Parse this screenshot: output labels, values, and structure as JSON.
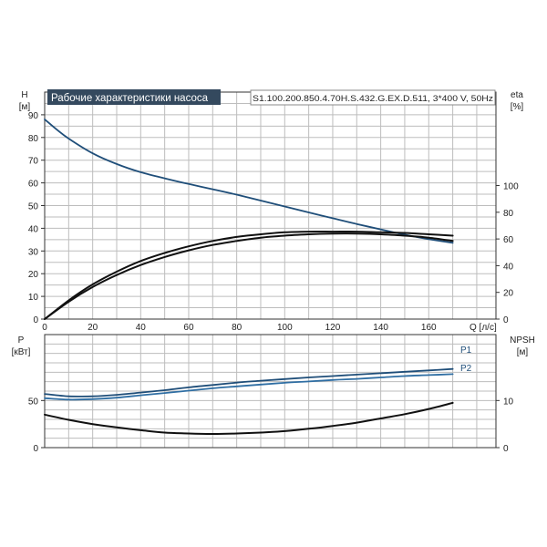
{
  "colors": {
    "accent": "#1f4e79",
    "title_bg": "#34495e",
    "title_text": "#ffffff",
    "curve_black": "#111111",
    "grid": "#bdbdbd"
  },
  "header": {
    "title": "Рабочие характеристики насоса",
    "model": "S1.100.200.850.4.70H.S.432.G.EX.D.511, 3*400 V, 50Hz"
  },
  "chart_data": [
    {
      "type": "line",
      "xlabel": "Q [л/с]",
      "x_ticks": [
        0,
        20,
        40,
        60,
        80,
        100,
        120,
        140,
        160
      ],
      "xlim": [
        0,
        188
      ],
      "left_axis": {
        "label_top": "H",
        "label_unit": "[м]",
        "ylim": [
          0,
          100
        ],
        "ticks": [
          0,
          10,
          20,
          30,
          40,
          50,
          60,
          70,
          80,
          90
        ]
      },
      "right_axis": {
        "label_top": "eta",
        "label_unit": "[%]",
        "ylim": [
          0,
          170
        ],
        "ticks": [
          0,
          20,
          40,
          60,
          80,
          100
        ]
      },
      "grid": true,
      "series": [
        {
          "axis": "left",
          "color": "#1f4e79",
          "x": [
            0,
            5,
            10,
            20,
            30,
            40,
            50,
            60,
            70,
            80,
            90,
            100,
            110,
            120,
            130,
            140,
            150,
            160,
            170
          ],
          "values": [
            88,
            83.5,
            79.5,
            73,
            68.3,
            64.7,
            62,
            59.5,
            57.2,
            54.8,
            52.2,
            49.6,
            47,
            44.4,
            41.9,
            39.5,
            37.2,
            35.2,
            33.6
          ]
        },
        {
          "axis": "right",
          "color": "#111111",
          "x": [
            0,
            10,
            20,
            30,
            40,
            50,
            60,
            70,
            80,
            90,
            100,
            110,
            120,
            130,
            140,
            150,
            160,
            170
          ],
          "values": [
            0,
            13,
            24,
            33,
            40.5,
            46.5,
            51.5,
            55.5,
            58.5,
            61,
            62.5,
            63.5,
            64,
            64,
            63.5,
            62.5,
            61,
            58.5
          ]
        },
        {
          "axis": "right",
          "color": "#111111",
          "x": [
            0,
            10,
            20,
            30,
            40,
            50,
            60,
            70,
            80,
            90,
            100,
            110,
            120,
            130,
            140,
            150,
            160,
            170
          ],
          "values": [
            0,
            14,
            26,
            35.5,
            43.5,
            49.5,
            54.5,
            58.5,
            61.5,
            63.5,
            65,
            65.5,
            65.5,
            65.5,
            65,
            64.5,
            63.5,
            62.5
          ]
        }
      ]
    },
    {
      "type": "line",
      "xlim": [
        0,
        188
      ],
      "left_axis": {
        "label_top": "P",
        "label_unit": "[кВт]",
        "ylim": [
          0,
          120
        ],
        "ticks": [
          0,
          50
        ]
      },
      "right_axis": {
        "label_top": "NPSH",
        "label_unit": "[м]",
        "ylim": [
          0,
          24
        ],
        "ticks": [
          0,
          10
        ]
      },
      "grid": true,
      "series": [
        {
          "name": "P1",
          "axis": "left",
          "color": "#1f4e79",
          "x": [
            0,
            10,
            20,
            30,
            40,
            50,
            60,
            70,
            80,
            90,
            100,
            110,
            120,
            130,
            140,
            150,
            160,
            170
          ],
          "values": [
            57,
            54.5,
            54.5,
            56,
            58.5,
            61,
            64,
            66.5,
            69,
            71,
            72.8,
            74.5,
            76,
            77.5,
            79,
            80.5,
            82,
            83.5
          ]
        },
        {
          "name": "P2",
          "axis": "left",
          "color": "#2f6ea3",
          "x": [
            0,
            10,
            20,
            30,
            40,
            50,
            60,
            70,
            80,
            90,
            100,
            110,
            120,
            130,
            140,
            150,
            160,
            170
          ],
          "values": [
            52.5,
            51,
            51.5,
            53,
            55.5,
            58,
            60.5,
            63,
            65,
            67,
            68.8,
            70.3,
            71.8,
            73,
            74.5,
            76,
            77,
            78
          ]
        },
        {
          "name": "NPSH",
          "axis": "right",
          "color": "#111111",
          "x": [
            0,
            10,
            20,
            30,
            40,
            50,
            60,
            70,
            80,
            90,
            100,
            110,
            120,
            130,
            140,
            150,
            160,
            170
          ],
          "values": [
            7,
            5.9,
            5,
            4.3,
            3.7,
            3.2,
            3,
            2.9,
            3,
            3.2,
            3.5,
            4,
            4.6,
            5.3,
            6.2,
            7.1,
            8.2,
            9.5
          ]
        }
      ]
    }
  ]
}
